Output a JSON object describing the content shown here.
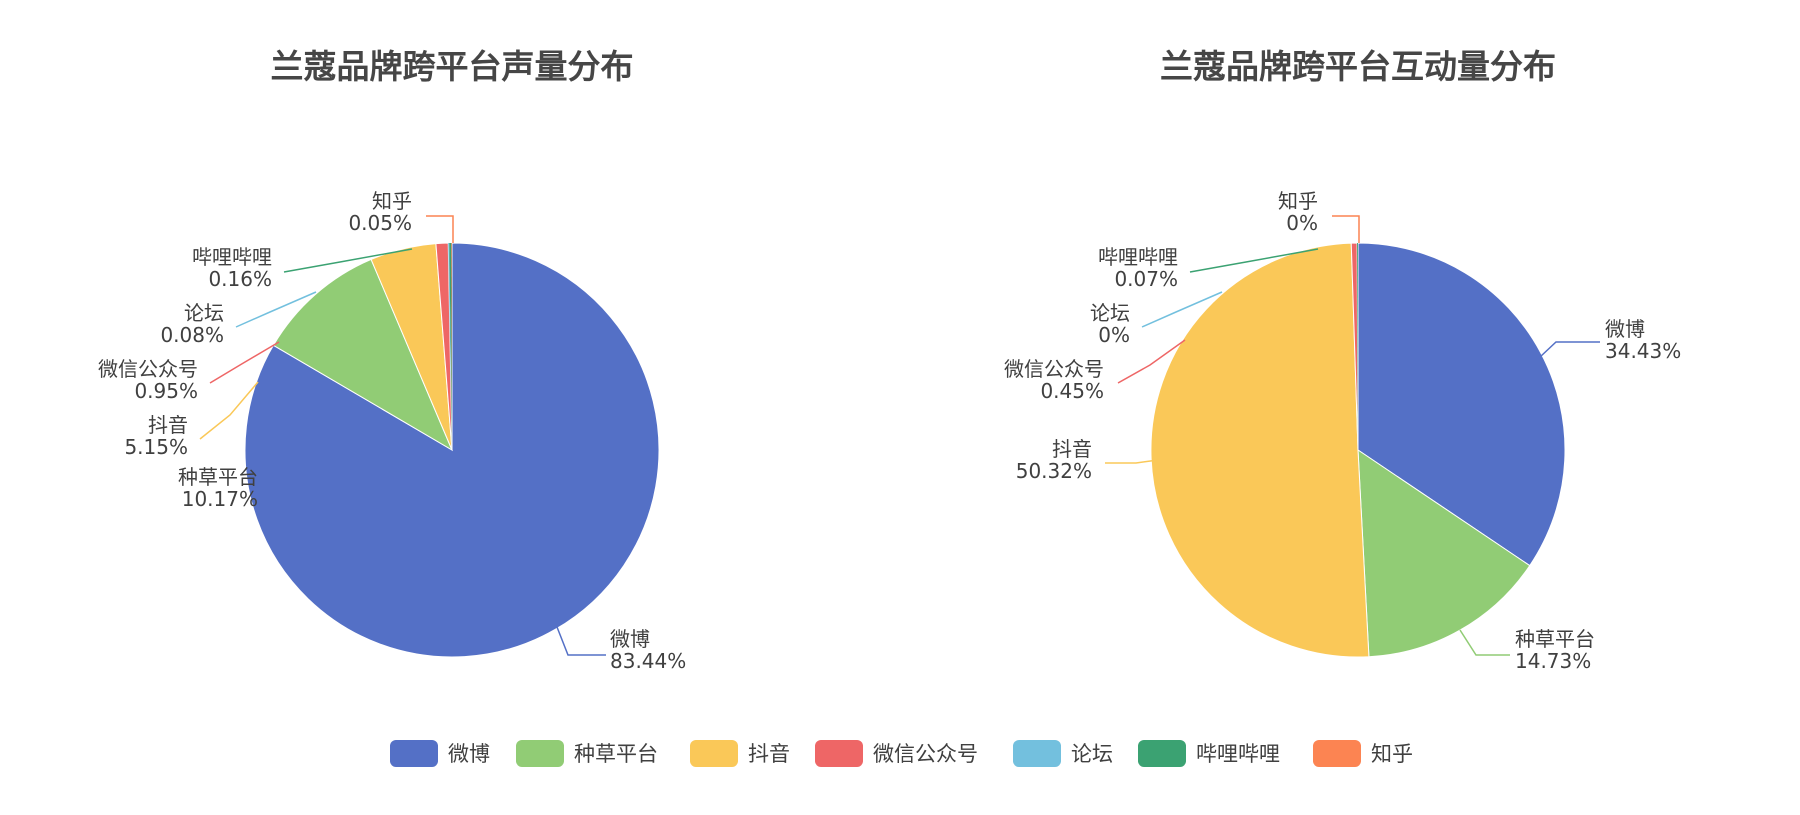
{
  "colors": {
    "微博": "#5470c6",
    "种草平台": "#91cc75",
    "抖音": "#fac858",
    "微信公众号": "#ee6666",
    "论坛": "#73c0de",
    "哔哩哔哩": "#3ba272",
    "知乎": "#fc8452"
  },
  "legend": {
    "position": "bottom-center",
    "items": [
      "微博",
      "种草平台",
      "抖音",
      "微信公众号",
      "论坛",
      "哔哩哔哩",
      "知乎"
    ]
  },
  "chart_data": [
    {
      "type": "pie",
      "title": "兰蔻品牌跨平台声量分布",
      "slices": [
        {
          "name": "微博",
          "value": 83.44,
          "label": "83.44%"
        },
        {
          "name": "种草平台",
          "value": 10.17,
          "label": "10.17%"
        },
        {
          "name": "抖音",
          "value": 5.15,
          "label": "5.15%"
        },
        {
          "name": "微信公众号",
          "value": 0.95,
          "label": "0.95%"
        },
        {
          "name": "论坛",
          "value": 0.08,
          "label": "0.08%"
        },
        {
          "name": "哔哩哔哩",
          "value": 0.16,
          "label": "0.16%"
        },
        {
          "name": "知乎",
          "value": 0.05,
          "label": "0.05%"
        }
      ]
    },
    {
      "type": "pie",
      "title": "兰蔻品牌跨平台互动量分布",
      "slices": [
        {
          "name": "微博",
          "value": 34.43,
          "label": "34.43%"
        },
        {
          "name": "种草平台",
          "value": 14.73,
          "label": "14.73%"
        },
        {
          "name": "抖音",
          "value": 50.32,
          "label": "50.32%"
        },
        {
          "name": "微信公众号",
          "value": 0.45,
          "label": "0.45%"
        },
        {
          "name": "论坛",
          "value": 0,
          "label": "0%"
        },
        {
          "name": "哔哩哔哩",
          "value": 0.07,
          "label": "0.07%"
        },
        {
          "name": "知乎",
          "value": 0,
          "label": "0%"
        }
      ]
    }
  ]
}
